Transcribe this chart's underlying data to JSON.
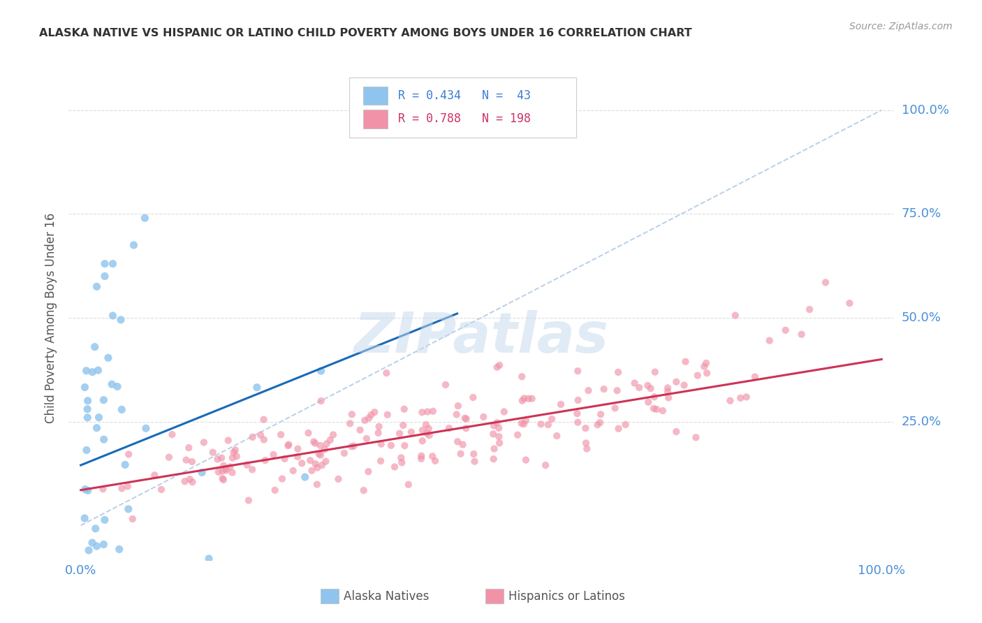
{
  "title": "ALASKA NATIVE VS HISPANIC OR LATINO CHILD POVERTY AMONG BOYS UNDER 16 CORRELATION CHART",
  "source": "Source: ZipAtlas.com",
  "ylabel_label": "Child Poverty Among Boys Under 16",
  "legend_r1": "R = 0.434",
  "legend_n1": "N =  43",
  "legend_r2": "R = 0.788",
  "legend_n2": "N = 198",
  "color_blue": "#8ec4ed",
  "color_pink": "#f093a8",
  "color_blue_line": "#1a6ab5",
  "color_pink_line": "#cc3355",
  "color_diag": "#b8d0e8",
  "watermark": "ZIPatlas",
  "seed": 42,
  "an_line_x0": 0.0,
  "an_line_y0": 0.145,
  "an_line_x1": 0.47,
  "an_line_y1": 0.51,
  "hn_line_x0": 0.0,
  "hn_line_y0": 0.085,
  "hn_line_x1": 1.0,
  "hn_line_y1": 0.4,
  "xlim_min": -0.015,
  "xlim_max": 1.015,
  "ylim_min": -0.085,
  "ylim_max": 1.085
}
